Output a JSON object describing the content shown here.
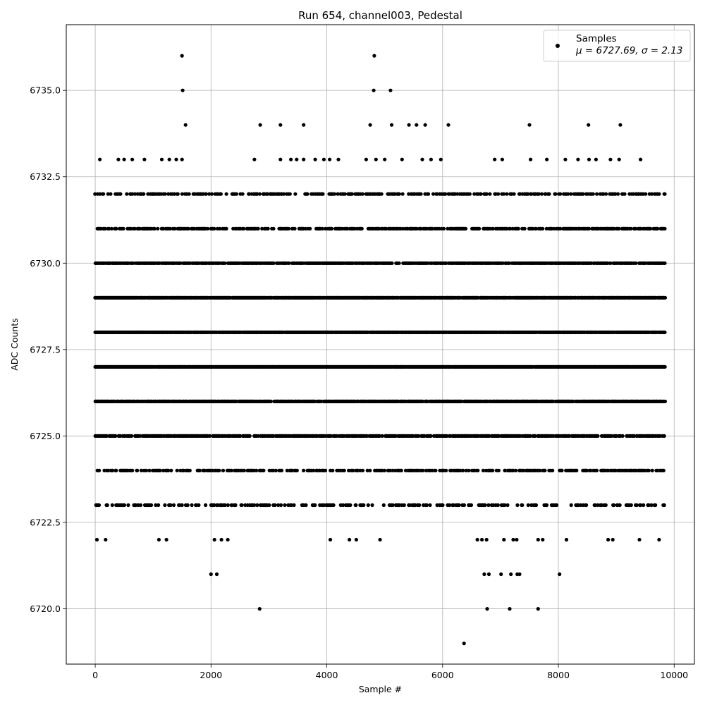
{
  "chart_data": {
    "type": "scatter",
    "title": "Run 654, channel003, Pedestal",
    "xlabel": "Sample #",
    "ylabel": "ADC Counts",
    "xlim": [
      -500,
      10350
    ],
    "ylim": [
      6718.4,
      6736.9
    ],
    "xticks": [
      0,
      2000,
      4000,
      6000,
      8000,
      10000
    ],
    "xtick_labels": [
      "0",
      "2000",
      "4000",
      "6000",
      "8000",
      "10000"
    ],
    "yticks": [
      6720.0,
      6722.5,
      6725.0,
      6727.5,
      6730.0,
      6732.5,
      6735.0
    ],
    "ytick_labels": [
      "6720.0",
      "6722.5",
      "6725.0",
      "6727.5",
      "6730.0",
      "6732.5",
      "6735.0"
    ],
    "grid": true,
    "legend_position": "top-right",
    "marker_color": "#000000",
    "legend": {
      "series_name": "Samples",
      "stats_label": "μ = 6727.69, σ = 2.13"
    },
    "series": [
      {
        "name": "Samples",
        "dense_levels": [
          {
            "y": 6732,
            "x_range": [
              0,
              9850
            ],
            "density": 0.4
          },
          {
            "y": 6731,
            "x_range": [
              0,
              9850
            ],
            "density": 0.55
          },
          {
            "y": 6730,
            "x_range": [
              0,
              9850
            ],
            "density": 0.8
          },
          {
            "y": 6729,
            "x_range": [
              0,
              9850
            ],
            "density": 0.92
          },
          {
            "y": 6728,
            "x_range": [
              0,
              9850
            ],
            "density": 0.98
          },
          {
            "y": 6727,
            "x_range": [
              0,
              9850
            ],
            "density": 0.98
          },
          {
            "y": 6726,
            "x_range": [
              0,
              9850
            ],
            "density": 0.85
          },
          {
            "y": 6725,
            "x_range": [
              0,
              9850
            ],
            "density": 0.7
          },
          {
            "y": 6724,
            "x_range": [
              0,
              9850
            ],
            "density": 0.45
          },
          {
            "y": 6723,
            "x_range": [
              0,
              9850
            ],
            "density": 0.3
          }
        ],
        "sparse_points": [
          [
            1500,
            6736
          ],
          [
            4820,
            6736
          ],
          [
            1510,
            6735
          ],
          [
            4810,
            6735
          ],
          [
            5100,
            6735
          ],
          [
            1560,
            6734
          ],
          [
            2850,
            6734
          ],
          [
            3200,
            6734
          ],
          [
            3600,
            6734
          ],
          [
            4750,
            6734
          ],
          [
            5120,
            6734
          ],
          [
            5420,
            6734
          ],
          [
            5550,
            6734
          ],
          [
            5700,
            6734
          ],
          [
            6100,
            6734
          ],
          [
            7500,
            6734
          ],
          [
            8520,
            6734
          ],
          [
            9070,
            6734
          ],
          [
            80,
            6733
          ],
          [
            400,
            6733
          ],
          [
            500,
            6733
          ],
          [
            640,
            6733
          ],
          [
            850,
            6733
          ],
          [
            1150,
            6733
          ],
          [
            1280,
            6733
          ],
          [
            1400,
            6733
          ],
          [
            1500,
            6733
          ],
          [
            2750,
            6733
          ],
          [
            3200,
            6733
          ],
          [
            3380,
            6733
          ],
          [
            3480,
            6733
          ],
          [
            3600,
            6733
          ],
          [
            3800,
            6733
          ],
          [
            3950,
            6733
          ],
          [
            4050,
            6733
          ],
          [
            4200,
            6733
          ],
          [
            4680,
            6733
          ],
          [
            4850,
            6733
          ],
          [
            5000,
            6733
          ],
          [
            5300,
            6733
          ],
          [
            5650,
            6733
          ],
          [
            5800,
            6733
          ],
          [
            5970,
            6733
          ],
          [
            6900,
            6733
          ],
          [
            7030,
            6733
          ],
          [
            7520,
            6733
          ],
          [
            7800,
            6733
          ],
          [
            8120,
            6733
          ],
          [
            8340,
            6733
          ],
          [
            8530,
            6733
          ],
          [
            8650,
            6733
          ],
          [
            8900,
            6733
          ],
          [
            9050,
            6733
          ],
          [
            9420,
            6733
          ],
          [
            30,
            6722
          ],
          [
            180,
            6722
          ],
          [
            1100,
            6722
          ],
          [
            1230,
            6722
          ],
          [
            2060,
            6722
          ],
          [
            2180,
            6722
          ],
          [
            2290,
            6722
          ],
          [
            4060,
            6722
          ],
          [
            4390,
            6722
          ],
          [
            4510,
            6722
          ],
          [
            4920,
            6722
          ],
          [
            6600,
            6722
          ],
          [
            6680,
            6722
          ],
          [
            6760,
            6722
          ],
          [
            7060,
            6722
          ],
          [
            7220,
            6722
          ],
          [
            7280,
            6722
          ],
          [
            7650,
            6722
          ],
          [
            7730,
            6722
          ],
          [
            8140,
            6722
          ],
          [
            8860,
            6722
          ],
          [
            8940,
            6722
          ],
          [
            9400,
            6722
          ],
          [
            9740,
            6722
          ],
          [
            2000,
            6721
          ],
          [
            2100,
            6721
          ],
          [
            6720,
            6721
          ],
          [
            6800,
            6721
          ],
          [
            7010,
            6721
          ],
          [
            7180,
            6721
          ],
          [
            7290,
            6721
          ],
          [
            7330,
            6721
          ],
          [
            8020,
            6721
          ],
          [
            2840,
            6720
          ],
          [
            6770,
            6720
          ],
          [
            7160,
            6720
          ],
          [
            7650,
            6720
          ],
          [
            6370,
            6719
          ]
        ]
      }
    ]
  }
}
